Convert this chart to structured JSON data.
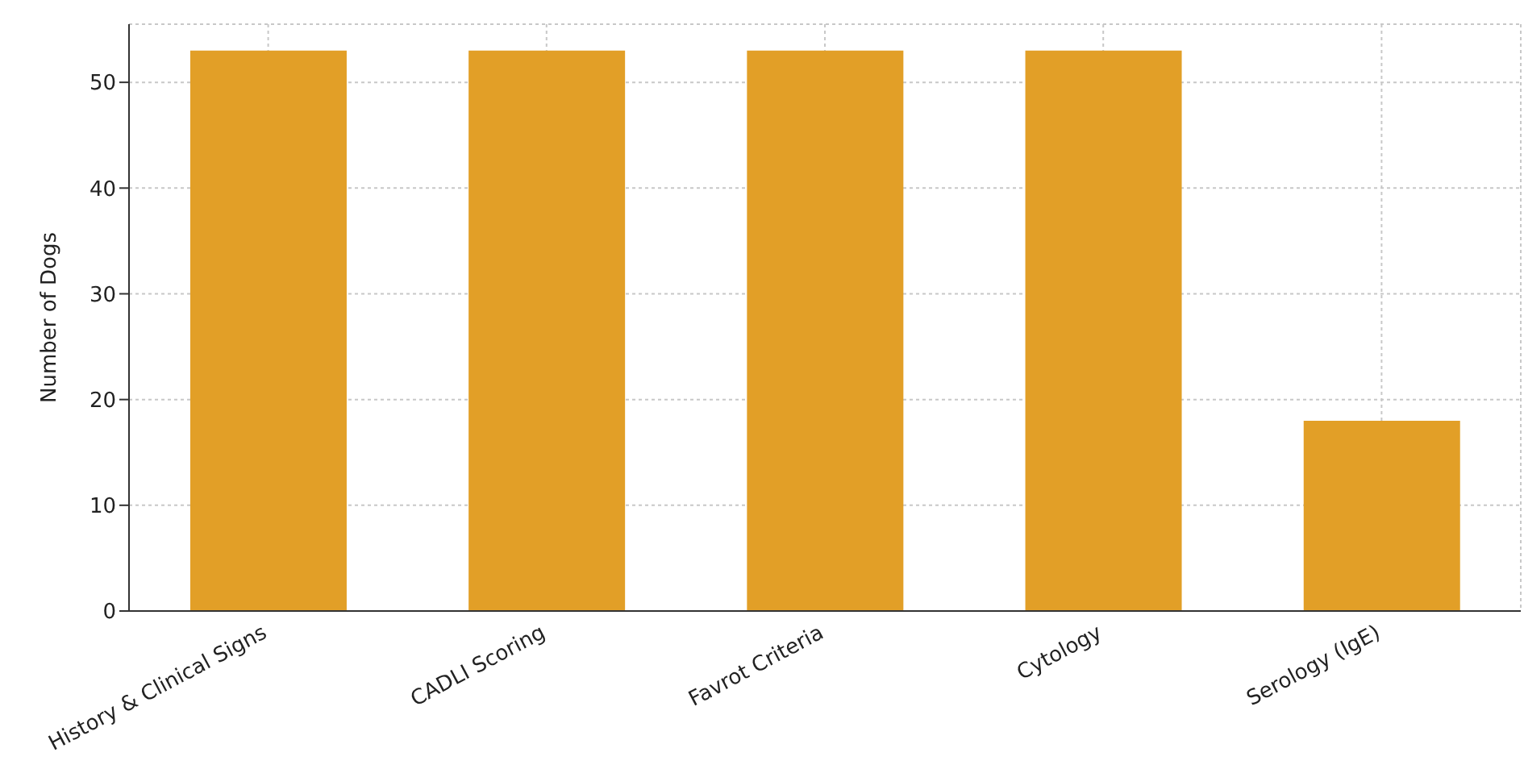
{
  "chart_data": {
    "type": "bar",
    "ylabel": "Number of Dogs",
    "categories": [
      "History & Clinical Signs",
      "CADLI Scoring",
      "Favrot Criteria",
      "Cytology",
      "Serology (IgE)"
    ],
    "values": [
      53,
      53,
      53,
      53,
      18
    ],
    "color": "#e29f27",
    "ylim": [
      0,
      55.5
    ],
    "yticks": [
      0,
      10,
      20,
      30,
      40,
      50
    ],
    "grid": true
  }
}
